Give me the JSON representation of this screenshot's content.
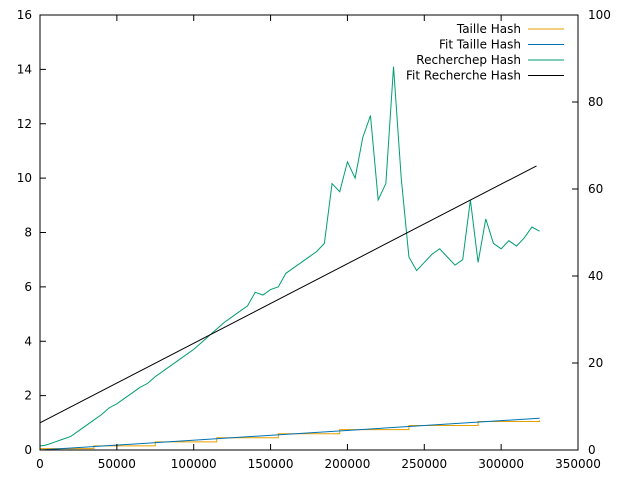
{
  "chart_data": {
    "type": "line",
    "title": "",
    "xlabel": "",
    "ylabel": "",
    "y2label": "",
    "xlim": [
      0,
      350000
    ],
    "ylim": [
      0,
      16
    ],
    "y2lim": [
      0,
      100
    ],
    "grid": false,
    "legend_position": "top-right",
    "xticks": [
      0,
      50000,
      100000,
      150000,
      200000,
      250000,
      300000,
      350000
    ],
    "xtick_labels": [
      "0",
      "50000",
      "100000",
      "150000",
      "200000",
      "250000",
      "300000",
      "350000"
    ],
    "yticks": [
      0,
      2,
      4,
      6,
      8,
      10,
      12,
      14,
      16
    ],
    "ytick_labels": [
      "0",
      "2",
      "4",
      "6",
      "8",
      "10",
      "12",
      "14",
      "16"
    ],
    "y2ticks": [
      0,
      20,
      40,
      60,
      80,
      100
    ],
    "y2tick_labels": [
      "0",
      "20",
      "40",
      "60",
      "80",
      "100"
    ],
    "series": [
      {
        "name": "Taille Hash",
        "color": "#e69f00",
        "axis": "y",
        "style": "step",
        "x": [
          0,
          35000,
          75000,
          115000,
          155000,
          195000,
          240000,
          285000,
          325000
        ],
        "y": [
          0.05,
          0.15,
          0.3,
          0.45,
          0.6,
          0.75,
          0.9,
          1.05,
          1.1
        ]
      },
      {
        "name": "Fit Taille Hash",
        "color": "#0072b2",
        "axis": "y",
        "style": "line",
        "x": [
          0,
          325000
        ],
        "y": [
          0.0,
          1.17
        ]
      },
      {
        "name": "Recherchep Hash",
        "color": "#009e73",
        "axis": "y",
        "style": "line",
        "x": [
          0,
          3000,
          6000,
          10000,
          15000,
          20000,
          25000,
          30000,
          35000,
          40000,
          45000,
          50000,
          55000,
          60000,
          65000,
          70000,
          75000,
          80000,
          85000,
          90000,
          95000,
          100000,
          105000,
          110000,
          115000,
          120000,
          125000,
          130000,
          135000,
          140000,
          145000,
          150000,
          155000,
          160000,
          165000,
          170000,
          175000,
          180000,
          185000,
          190000,
          195000,
          200000,
          205000,
          210000,
          215000,
          220000,
          225000,
          230000,
          235000,
          240000,
          245000,
          250000,
          255000,
          260000,
          265000,
          270000,
          275000,
          280000,
          285000,
          290000,
          295000,
          300000,
          305000,
          310000,
          315000,
          320000,
          325000
        ],
        "y": [
          0.15,
          0.17,
          0.22,
          0.3,
          0.4,
          0.5,
          0.7,
          0.9,
          1.1,
          1.3,
          1.55,
          1.7,
          1.9,
          2.1,
          2.3,
          2.45,
          2.7,
          2.9,
          3.1,
          3.3,
          3.5,
          3.7,
          3.95,
          4.2,
          4.45,
          4.7,
          4.9,
          5.1,
          5.3,
          5.8,
          5.7,
          5.9,
          6.0,
          6.5,
          6.7,
          6.9,
          7.1,
          7.3,
          7.6,
          9.8,
          9.5,
          10.6,
          10.0,
          11.5,
          12.3,
          9.2,
          9.8,
          14.1,
          10.0,
          7.1,
          6.6,
          6.9,
          7.2,
          7.4,
          7.1,
          6.8,
          7.0,
          9.2,
          6.9,
          8.5,
          7.6,
          7.4,
          7.7,
          7.5,
          7.8,
          8.2,
          8.05
        ]
      },
      {
        "name": "Fit Recherche Hash",
        "color": "#000000",
        "axis": "y",
        "style": "line",
        "x": [
          0,
          323000
        ],
        "y": [
          1.0,
          10.45
        ]
      }
    ]
  }
}
